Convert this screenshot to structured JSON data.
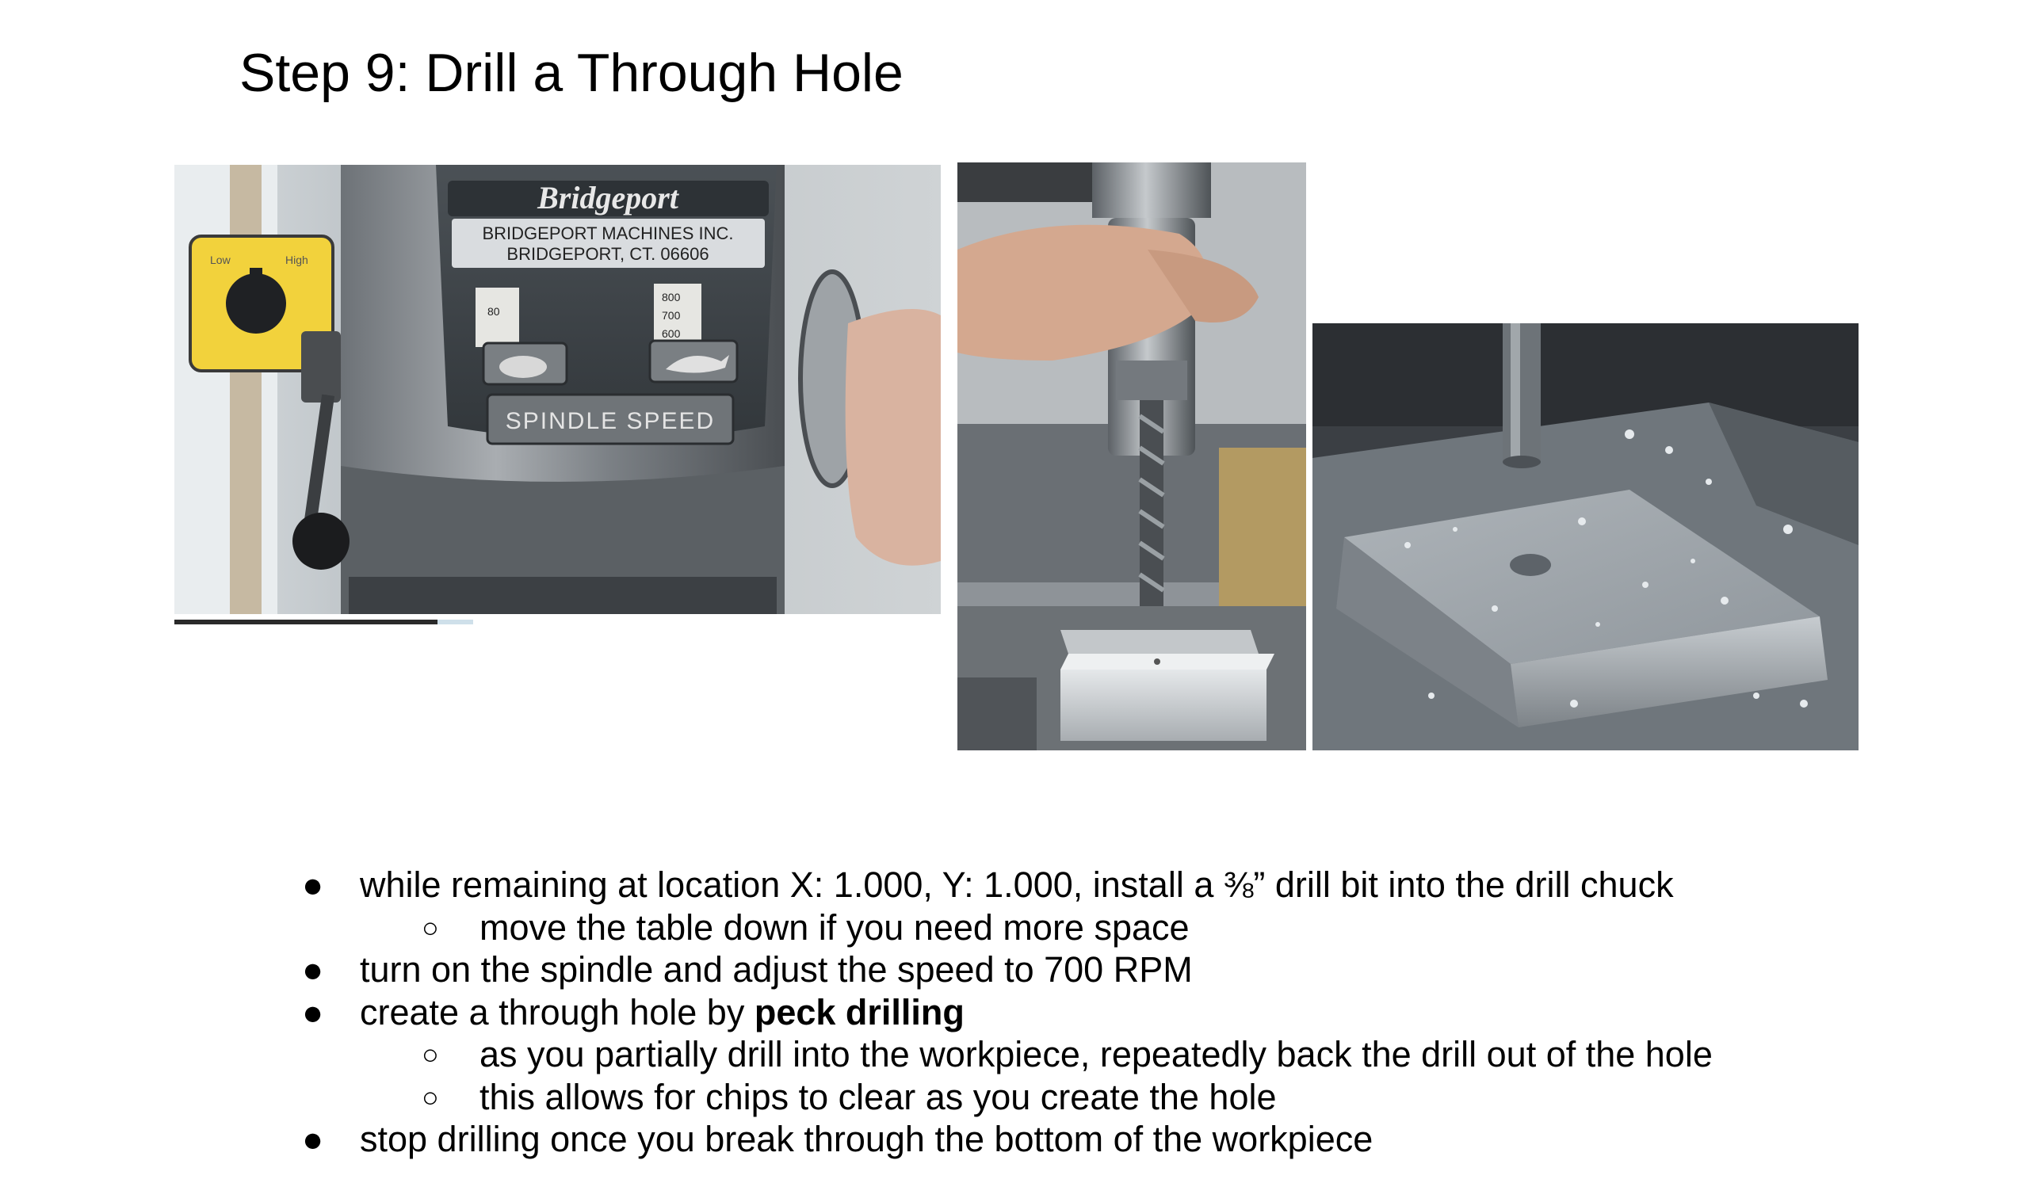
{
  "title": "Step 9: Drill a Through Hole",
  "photos": {
    "mill_head": {
      "logo": "Bridgeport",
      "plate_line1": "BRIDGEPORT MACHINES INC.",
      "plate_line2": "BRIDGEPORT, CT. 06606",
      "range_low": "Low",
      "range_high": "High",
      "dial_left": "80",
      "dial_right_top": "800",
      "dial_right_mid": "700",
      "dial_right_bottom": "600",
      "speed_label": "SPINDLE SPEED"
    }
  },
  "bullets": [
    {
      "level": 1,
      "text": "while remaining at location X: 1.000, Y: 1.000, install a ⅜” drill bit into the drill chuck"
    },
    {
      "level": 2,
      "text": "move the table down if you need more space"
    },
    {
      "level": 1,
      "text": "turn on the spindle and adjust the speed to 700 RPM"
    },
    {
      "level": 1,
      "text_before": "create a through hole by ",
      "text_bold": "peck drilling"
    },
    {
      "level": 2,
      "text": "as you partially drill into the workpiece, repeatedly back the drill out of the hole"
    },
    {
      "level": 2,
      "text": "this allows for chips to clear as you create the hole"
    },
    {
      "level": 1,
      "text": "stop drilling once you break through the bottom of the workpiece"
    }
  ],
  "markers": {
    "level1": "●",
    "level2": "○"
  }
}
